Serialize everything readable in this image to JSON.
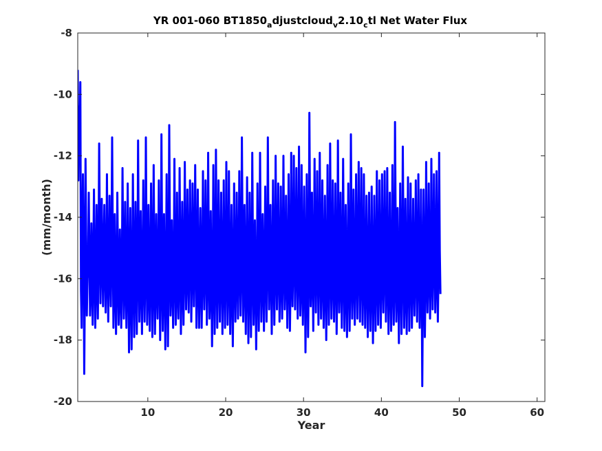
{
  "chart_data": {
    "type": "line",
    "title_parts": [
      {
        "text": "YR 001-060 BT1850",
        "sub": false
      },
      {
        "text": "a",
        "sub": true
      },
      {
        "text": "djustcloud",
        "sub": false
      },
      {
        "text": "v",
        "sub": true
      },
      {
        "text": "2.10",
        "sub": false
      },
      {
        "text": "c",
        "sub": true
      },
      {
        "text": "tl Net Water Flux",
        "sub": false
      }
    ],
    "xlabel": "Year",
    "ylabel": "(mm/month)",
    "xlim": [
      1,
      61
    ],
    "ylim": [
      -20,
      -8
    ],
    "xticks": [
      10,
      20,
      30,
      40,
      50,
      60
    ],
    "yticks": [
      -8,
      -10,
      -12,
      -14,
      -16,
      -18,
      -20
    ],
    "grid": false,
    "line_color": "#0000ff",
    "series": [
      {
        "x_start": 1,
        "x_step": 0.0833333,
        "values": [
          -9.2,
          -12.8,
          -10.4,
          -11.6,
          -9.6,
          -16.4,
          -17.6,
          -14.6,
          -12.6,
          -15.0,
          -19.1,
          -16.2,
          -12.1,
          -14.6,
          -17.2,
          -16.0,
          -15.6,
          -13.2,
          -15.4,
          -17.2,
          -16.4,
          -14.2,
          -15.9,
          -17.5,
          -15.4,
          -13.1,
          -15.8,
          -17.6,
          -16.1,
          -13.6,
          -15.8,
          -17.3,
          -15.3,
          -11.6,
          -14.3,
          -16.8,
          -15.6,
          -13.4,
          -15.2,
          -16.9,
          -15.3,
          -13.6,
          -15.6,
          -17.1,
          -15.9,
          -12.6,
          -15.5,
          -17.4,
          -15.6,
          -13.3,
          -15.7,
          -16.9,
          -15.1,
          -11.4,
          -14.7,
          -17.6,
          -16.3,
          -13.9,
          -16.0,
          -17.8,
          -16.1,
          -13.2,
          -15.4,
          -17.5,
          -16.6,
          -14.4,
          -16.2,
          -17.6,
          -16.0,
          -12.4,
          -15.1,
          -17.3,
          -16.2,
          -13.5,
          -15.8,
          -17.6,
          -16.0,
          -12.9,
          -15.6,
          -18.4,
          -16.1,
          -13.7,
          -16.3,
          -18.3,
          -16.1,
          -12.6,
          -15.3,
          -17.9,
          -16.1,
          -13.5,
          -15.9,
          -17.8,
          -15.8,
          -11.5,
          -14.9,
          -17.4,
          -16.2,
          -13.8,
          -16.0,
          -17.8,
          -15.9,
          -12.8,
          -15.6,
          -17.4,
          -15.9,
          -11.4,
          -14.8,
          -17.5,
          -16.4,
          -13.6,
          -15.9,
          -17.7,
          -15.8,
          -12.9,
          -15.4,
          -17.9,
          -16.1,
          -12.3,
          -15.3,
          -17.8,
          -16.2,
          -13.9,
          -16.0,
          -17.3,
          -15.6,
          -12.8,
          -15.9,
          -18.0,
          -16.3,
          -11.3,
          -14.9,
          -17.7,
          -16.0,
          -13.9,
          -16.2,
          -18.3,
          -15.9,
          -12.6,
          -15.8,
          -18.2,
          -16.0,
          -11.0,
          -14.3,
          -17.2,
          -16.3,
          -14.1,
          -16.1,
          -17.6,
          -15.9,
          -12.1,
          -15.2,
          -17.5,
          -16.4,
          -13.2,
          -16.0,
          -17.3,
          -15.9,
          -12.4,
          -15.2,
          -17.8,
          -16.2,
          -13.5,
          -15.8,
          -17.5,
          -15.7,
          -12.2,
          -14.9,
          -17.0,
          -15.8,
          -13.1,
          -15.6,
          -17.1,
          -15.2,
          -12.8,
          -15.0,
          -17.4,
          -15.8,
          -12.9,
          -15.1,
          -16.9,
          -15.4,
          -12.3,
          -14.8,
          -17.6,
          -16.2,
          -13.1,
          -15.4,
          -17.6,
          -16.1,
          -13.7,
          -15.8,
          -17.6,
          -15.9,
          -12.5,
          -15.0,
          -17.0,
          -15.7,
          -12.8,
          -15.1,
          -17.5,
          -16.0,
          -11.9,
          -15.0,
          -17.3,
          -16.3,
          -13.8,
          -16.2,
          -18.2,
          -16.2,
          -12.3,
          -15.2,
          -17.8,
          -16.0,
          -11.8,
          -15.0,
          -17.6,
          -15.9,
          -12.8,
          -15.5,
          -17.4,
          -15.7,
          -13.2,
          -15.6,
          -17.8,
          -16.0,
          -12.8,
          -15.5,
          -17.6,
          -15.8,
          -12.2,
          -15.2,
          -17.5,
          -16.1,
          -12.5,
          -15.3,
          -17.8,
          -16.3,
          -13.6,
          -16.0,
          -18.2,
          -16.0,
          -12.9,
          -15.4,
          -17.4,
          -15.9,
          -13.2,
          -15.6,
          -17.3,
          -15.8,
          -12.5,
          -15.0,
          -17.2,
          -15.6,
          -11.4,
          -14.6,
          -17.4,
          -16.0,
          -13.6,
          -15.9,
          -17.8,
          -15.9,
          -12.7,
          -15.6,
          -18.1,
          -16.2,
          -13.2,
          -15.6,
          -17.9,
          -16.0,
          -11.9,
          -15.0,
          -17.5,
          -16.2,
          -14.1,
          -16.1,
          -18.3,
          -16.4,
          -12.9,
          -15.4,
          -17.7,
          -15.9,
          -11.9,
          -15.0,
          -17.4,
          -16.1,
          -13.9,
          -15.8,
          -17.7,
          -15.7,
          -13.0,
          -15.5,
          -17.4,
          -15.6,
          -11.4,
          -14.5,
          -17.0,
          -15.9,
          -13.6,
          -15.8,
          -17.8,
          -15.7,
          -12.8,
          -15.4,
          -17.5,
          -15.8,
          -12.0,
          -14.9,
          -17.0,
          -15.8,
          -12.9,
          -15.2,
          -17.4,
          -16.1,
          -13.0,
          -15.4,
          -17.3,
          -15.8,
          -12.0,
          -15.0,
          -17.0,
          -16.0,
          -13.3,
          -15.6,
          -17.6,
          -15.9,
          -12.6,
          -15.1,
          -17.7,
          -16.2,
          -11.9,
          -14.7,
          -16.9,
          -15.5,
          -12.0,
          -14.8,
          -17.0,
          -15.6,
          -12.4,
          -14.9,
          -17.3,
          -15.9,
          -11.7,
          -14.8,
          -17.2,
          -16.4,
          -12.3,
          -15.2,
          -17.5,
          -15.8,
          -13.0,
          -15.6,
          -18.4,
          -16.2,
          -12.6,
          -15.3,
          -17.9,
          -16.1,
          -10.6,
          -13.9,
          -16.9,
          -16.0,
          -13.2,
          -15.7,
          -17.7,
          -15.6,
          -12.1,
          -14.9,
          -17.1,
          -15.6,
          -12.5,
          -15.2,
          -17.5,
          -15.7,
          -11.9,
          -14.8,
          -17.3,
          -16.1,
          -12.8,
          -15.1,
          -17.6,
          -16.2,
          -13.3,
          -15.7,
          -18.0,
          -16.1,
          -12.3,
          -15.0,
          -17.5,
          -15.9,
          -11.6,
          -14.9,
          -17.3,
          -16.0,
          -12.8,
          -15.3,
          -17.4,
          -15.9,
          -12.9,
          -15.6,
          -17.8,
          -16.2,
          -11.5,
          -14.6,
          -17.1,
          -16.0,
          -13.2,
          -15.8,
          -17.6,
          -15.8,
          -12.1,
          -15.0,
          -17.7,
          -16.3,
          -13.6,
          -15.9,
          -17.9,
          -16.0,
          -12.9,
          -15.4,
          -17.7,
          -16.1,
          -11.3,
          -14.7,
          -17.3,
          -16.0,
          -13.1,
          -15.7,
          -17.5,
          -15.8,
          -12.6,
          -15.2,
          -17.3,
          -15.6,
          -12.2,
          -15.0,
          -17.4,
          -15.9,
          -12.4,
          -15.1,
          -17.5,
          -16.2,
          -12.6,
          -15.3,
          -17.6,
          -16.1,
          -13.3,
          -15.5,
          -17.9,
          -16.2,
          -13.2,
          -15.6,
          -17.7,
          -16.2,
          -13.0,
          -15.6,
          -18.1,
          -16.3,
          -13.3,
          -15.5,
          -17.7,
          -16.0,
          -12.5,
          -15.3,
          -17.5,
          -15.9,
          -12.8,
          -15.4,
          -17.6,
          -16.0,
          -12.6,
          -15.3,
          -17.1,
          -15.6,
          -12.5,
          -15.3,
          -17.4,
          -16.1,
          -12.4,
          -15.4,
          -17.8,
          -16.1,
          -13.2,
          -15.7,
          -17.7,
          -16.3,
          -12.3,
          -15.0,
          -17.5,
          -16.3,
          -10.9,
          -14.2,
          -17.4,
          -16.4,
          -13.7,
          -15.8,
          -18.1,
          -16.0,
          -12.9,
          -15.6,
          -17.8,
          -15.9,
          -11.7,
          -14.7,
          -17.6,
          -16.6,
          -13.4,
          -15.6,
          -17.8,
          -15.9,
          -12.7,
          -15.5,
          -17.7,
          -15.9,
          -12.9,
          -15.3,
          -17.6,
          -16.2,
          -13.4,
          -15.5,
          -17.2,
          -15.9,
          -12.8,
          -15.2,
          -17.4,
          -15.8,
          -12.6,
          -15.3,
          -17.6,
          -16.2,
          -13.1,
          -15.5,
          -19.5,
          -16.3,
          -13.1,
          -15.6,
          -17.9,
          -16.1,
          -12.2,
          -15.1,
          -17.1,
          -16.0,
          -12.9,
          -15.3,
          -17.3,
          -16.1,
          -12.1,
          -14.9,
          -17.0,
          -15.5,
          -12.6,
          -14.8,
          -17.1,
          -16.1,
          -12.5,
          -15.3,
          -17.4,
          -15.8,
          -11.9,
          -15.1,
          -16.5
        ]
      }
    ]
  }
}
